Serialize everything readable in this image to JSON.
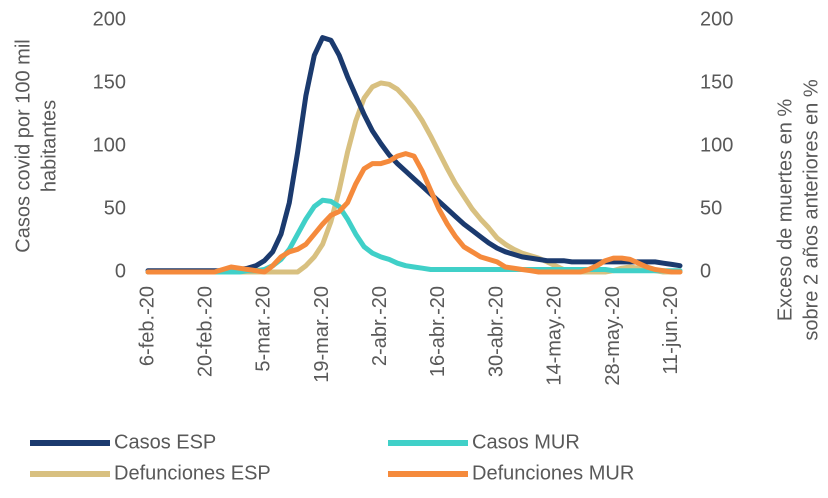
{
  "chart_data": {
    "type": "line",
    "ylabel": [
      "Casos covid por 100 mil",
      "habitantes"
    ],
    "y2label": [
      "Exceso de muertes en %",
      "sobre 2 años anteriores en %"
    ],
    "categories": [
      "6-feb.-20",
      null,
      null,
      null,
      null,
      null,
      null,
      "20-feb.-20",
      null,
      null,
      null,
      null,
      null,
      null,
      "5-mar.-20",
      null,
      null,
      null,
      null,
      null,
      null,
      "19-mar.-20",
      null,
      null,
      null,
      null,
      null,
      null,
      "2-abr.-20",
      null,
      null,
      null,
      null,
      null,
      null,
      "16-abr.-20",
      null,
      null,
      null,
      null,
      null,
      null,
      "30-abr.-20",
      null,
      null,
      null,
      null,
      null,
      null,
      "14-may.-20",
      null,
      null,
      null,
      null,
      null,
      null,
      "28-may.-20",
      null,
      null,
      null,
      null,
      null,
      null,
      "11-jun.-20",
      null
    ],
    "ylim": [
      0,
      200
    ],
    "yticks": [
      0,
      50,
      100,
      150,
      200
    ],
    "y2lim": [
      0,
      200
    ],
    "y2ticks": [
      0,
      50,
      100,
      150,
      200
    ],
    "legend": "bottom",
    "series": [
      {
        "name": "Defunciones ESP",
        "color": "#d8c080",
        "axis": "y2",
        "values": [
          0,
          0,
          0,
          0,
          0,
          0,
          0,
          0,
          0,
          0,
          0,
          0,
          0,
          0,
          0,
          0,
          0,
          0,
          0,
          5,
          12,
          22,
          40,
          65,
          95,
          120,
          138,
          147,
          150,
          149,
          145,
          138,
          130,
          120,
          108,
          95,
          82,
          70,
          60,
          50,
          42,
          35,
          27,
          22,
          18,
          15,
          13,
          11,
          8,
          5,
          2,
          0,
          0,
          0,
          0,
          0,
          1,
          3,
          4,
          3,
          2,
          1,
          0,
          0,
          0
        ]
      },
      {
        "name": "Casos ESP",
        "color": "#1b3a6e",
        "values": [
          1,
          1,
          1,
          1,
          1,
          1,
          1,
          1,
          1,
          1,
          1,
          2,
          3,
          5,
          9,
          16,
          30,
          55,
          95,
          140,
          172,
          186,
          184,
          172,
          155,
          140,
          125,
          112,
          102,
          93,
          86,
          80,
          74,
          68,
          62,
          56,
          50,
          44,
          38,
          33,
          28,
          23,
          19,
          16,
          14,
          12,
          11,
          10,
          9,
          9,
          9,
          8,
          8,
          8,
          8,
          8,
          8,
          8,
          8,
          8,
          8,
          8,
          7,
          6,
          5
        ]
      },
      {
        "name": "Casos MUR",
        "color": "#40d0c8",
        "values": [
          0,
          0,
          0,
          0,
          0,
          0,
          0,
          0,
          0,
          0,
          0,
          0,
          1,
          1,
          2,
          5,
          10,
          18,
          30,
          42,
          52,
          57,
          56,
          52,
          42,
          30,
          20,
          15,
          12,
          10,
          7,
          5,
          4,
          3,
          2,
          2,
          2,
          2,
          2,
          2,
          2,
          2,
          2,
          2,
          2,
          2,
          2,
          2,
          2,
          2,
          2,
          2,
          2,
          2,
          2,
          2,
          1,
          1,
          1,
          1,
          1,
          1,
          1,
          1,
          1
        ]
      },
      {
        "name": "Defunciones MUR",
        "color": "#f58a3c",
        "axis": "y2",
        "values": [
          0,
          0,
          0,
          0,
          0,
          0,
          0,
          0,
          0,
          2,
          4,
          3,
          2,
          1,
          0,
          5,
          12,
          16,
          18,
          22,
          30,
          38,
          45,
          48,
          55,
          70,
          82,
          86,
          86,
          88,
          92,
          94,
          92,
          80,
          65,
          50,
          38,
          28,
          20,
          16,
          12,
          10,
          8,
          4,
          3,
          2,
          1,
          0,
          0,
          0,
          0,
          0,
          0,
          2,
          5,
          9,
          11,
          11,
          10,
          7,
          4,
          2,
          1,
          0,
          0
        ]
      }
    ]
  }
}
